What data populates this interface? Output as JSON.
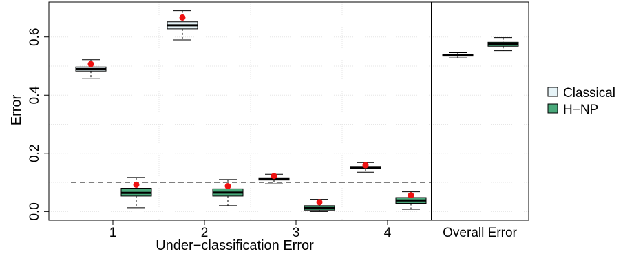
{
  "chart_data": {
    "type": "boxplot",
    "xlabel": "Under−classification Error",
    "ylabel": "Error",
    "ylim": [
      -0.03,
      0.72
    ],
    "yticks": [
      0.0,
      0.2,
      0.4,
      0.6
    ],
    "ytick_labels": [
      "0.0",
      "0.2",
      "0.4",
      "0.6"
    ],
    "categories": [
      "1",
      "2",
      "3",
      "4",
      "Overall Error"
    ],
    "grid": true,
    "reference_line": {
      "value": 0.1,
      "style": "dashed"
    },
    "legend": {
      "placement": "right",
      "entries": [
        {
          "label": "Classical",
          "color": "#e6f3f7"
        },
        {
          "label": "H−NP",
          "color": "#4aa97b"
        }
      ]
    },
    "mean_marker_color": "#ee1111",
    "series": [
      {
        "name": "Classical",
        "color": "#e6f3f7",
        "boxes": [
          {
            "category": "1",
            "whisker_low": 0.458,
            "q1": 0.483,
            "median": 0.49,
            "q3": 0.497,
            "whisker_high": 0.522,
            "mean": 0.507
          },
          {
            "category": "2",
            "whisker_low": 0.59,
            "q1": 0.628,
            "median": 0.64,
            "q3": 0.652,
            "whisker_high": 0.69,
            "mean": 0.667
          },
          {
            "category": "3",
            "whisker_low": 0.095,
            "q1": 0.108,
            "median": 0.112,
            "q3": 0.116,
            "whisker_high": 0.128,
            "mean": 0.122
          },
          {
            "category": "4",
            "whisker_low": 0.135,
            "q1": 0.147,
            "median": 0.151,
            "q3": 0.155,
            "whisker_high": 0.168,
            "mean": 0.159
          },
          {
            "category": "Overall Error",
            "whisker_low": 0.528,
            "q1": 0.534,
            "median": 0.537,
            "q3": 0.54,
            "whisker_high": 0.546,
            "mean": null
          }
        ]
      },
      {
        "name": "H−NP",
        "color": "#4aa97b",
        "boxes": [
          {
            "category": "1",
            "whisker_low": 0.013,
            "q1": 0.053,
            "median": 0.064,
            "q3": 0.08,
            "whisker_high": 0.117,
            "mean": 0.092
          },
          {
            "category": "2",
            "whisker_low": 0.02,
            "q1": 0.053,
            "median": 0.065,
            "q3": 0.078,
            "whisker_high": 0.11,
            "mean": 0.087
          },
          {
            "category": "3",
            "whisker_low": 0.0,
            "q1": 0.005,
            "median": 0.012,
            "q3": 0.02,
            "whisker_high": 0.042,
            "mean": 0.032
          },
          {
            "category": "4",
            "whisker_low": 0.008,
            "q1": 0.028,
            "median": 0.038,
            "q3": 0.048,
            "whisker_high": 0.068,
            "mean": 0.056
          },
          {
            "category": "Overall Error",
            "whisker_low": 0.553,
            "q1": 0.568,
            "median": 0.575,
            "q3": 0.582,
            "whisker_high": 0.598,
            "mean": null
          }
        ]
      }
    ]
  }
}
